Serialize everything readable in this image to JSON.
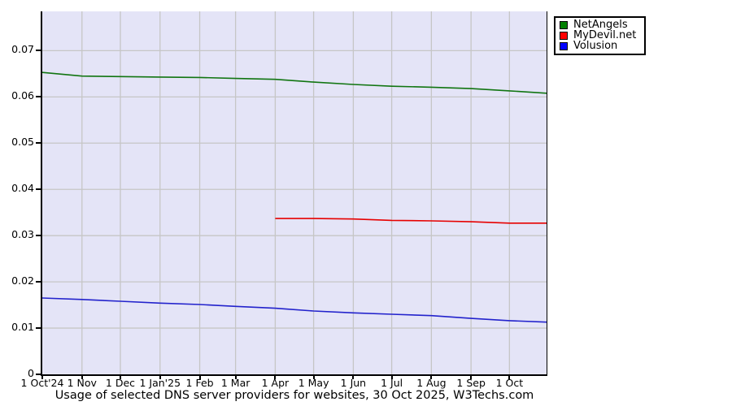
{
  "title": "Usage of selected DNS server providers for websites, 30 Oct 2025, W3Techs.com",
  "chart_data": {
    "type": "line",
    "title": "Usage of selected DNS server providers for websites, 30 Oct 2025, W3Techs.com",
    "legend_position": "top-right",
    "grid": true,
    "plot_bg": "#e4e4f7",
    "grid_color": "#c6c6c6",
    "axis_color": "#000000",
    "x_axis": {
      "unit": "days since 1 Oct 2024",
      "max_day": 394,
      "ticks": [
        {
          "day": 0,
          "label": "1 Oct'24"
        },
        {
          "day": 31,
          "label": "1 Nov"
        },
        {
          "day": 61,
          "label": "1 Dec"
        },
        {
          "day": 92,
          "label": "1 Jan'25"
        },
        {
          "day": 123,
          "label": "1 Feb"
        },
        {
          "day": 151,
          "label": "1 Mar"
        },
        {
          "day": 182,
          "label": "1 Apr"
        },
        {
          "day": 212,
          "label": "1 May"
        },
        {
          "day": 243,
          "label": "1 Jun"
        },
        {
          "day": 273,
          "label": "1 Jul"
        },
        {
          "day": 304,
          "label": "1 Aug"
        },
        {
          "day": 335,
          "label": "1 Sep"
        },
        {
          "day": 365,
          "label": "1 Oct"
        }
      ]
    },
    "y_axis": {
      "min": 0,
      "max": 0.0785,
      "tick_step": 0.01,
      "ticks": [
        {
          "value": 0,
          "label": "0"
        },
        {
          "value": 0.01,
          "label": "0.01"
        },
        {
          "value": 0.02,
          "label": "0.02"
        },
        {
          "value": 0.03,
          "label": "0.03"
        },
        {
          "value": 0.04,
          "label": "0.04"
        },
        {
          "value": 0.05,
          "label": "0.05"
        },
        {
          "value": 0.06,
          "label": "0.06"
        },
        {
          "value": 0.07,
          "label": "0.07"
        }
      ]
    },
    "series": [
      {
        "name": "NetAngels",
        "line_color": "#117511",
        "swatch_color": "#008000",
        "points": [
          [
            0,
            0.0653
          ],
          [
            31,
            0.0645
          ],
          [
            61,
            0.0644
          ],
          [
            92,
            0.0643
          ],
          [
            123,
            0.0642
          ],
          [
            151,
            0.064
          ],
          [
            182,
            0.0638
          ],
          [
            212,
            0.0632
          ],
          [
            243,
            0.0627
          ],
          [
            273,
            0.0623
          ],
          [
            304,
            0.0621
          ],
          [
            335,
            0.0618
          ],
          [
            365,
            0.0613
          ],
          [
            394,
            0.0608
          ]
        ]
      },
      {
        "name": "MyDevil.net",
        "line_color": "#e60000",
        "swatch_color": "#ff0000",
        "points": [
          [
            182,
            0.0337
          ],
          [
            212,
            0.0337
          ],
          [
            243,
            0.0336
          ],
          [
            273,
            0.0333
          ],
          [
            304,
            0.0332
          ],
          [
            335,
            0.033
          ],
          [
            365,
            0.0327
          ],
          [
            394,
            0.0327
          ]
        ]
      },
      {
        "name": "Volusion",
        "line_color": "#2222cc",
        "swatch_color": "#0000ff",
        "points": [
          [
            0,
            0.0165
          ],
          [
            31,
            0.0162
          ],
          [
            61,
            0.0158
          ],
          [
            92,
            0.0154
          ],
          [
            123,
            0.0151
          ],
          [
            151,
            0.0147
          ],
          [
            182,
            0.0143
          ],
          [
            212,
            0.0137
          ],
          [
            243,
            0.0133
          ],
          [
            273,
            0.013
          ],
          [
            304,
            0.0127
          ],
          [
            335,
            0.0121
          ],
          [
            365,
            0.0116
          ],
          [
            394,
            0.0113
          ]
        ]
      }
    ]
  }
}
